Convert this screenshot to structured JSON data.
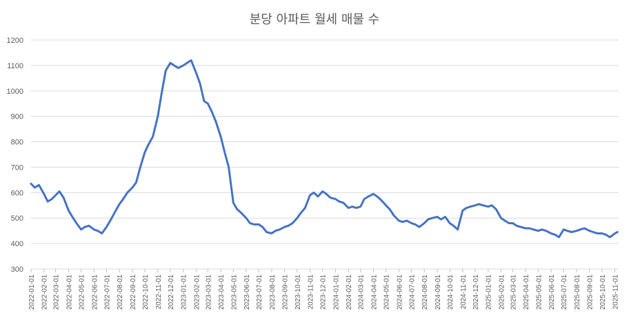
{
  "chart_data": {
    "type": "line",
    "title": "분당 아파트 월세 매물 수",
    "xlabel": "",
    "ylabel": "",
    "ylim": [
      300,
      1200
    ],
    "yticks": [
      300,
      400,
      500,
      600,
      700,
      800,
      900,
      1000,
      1100,
      1200
    ],
    "grid": true,
    "legend": "none",
    "color": "#4472C4",
    "x_tick_labels": [
      "2022-01-01",
      "2022-02-01",
      "2022-03-01",
      "2022-04-01",
      "2022-05-01",
      "2022-06-01",
      "2022-07-01",
      "2022-08-01",
      "2022-09-01",
      "2022-10-01",
      "2022-11-01",
      "2022-12-01",
      "2023-01-01",
      "2023-02-01",
      "2023-03-01",
      "2023-04-01",
      "2023-05-01",
      "2023-06-01",
      "2023-07-01",
      "2023-08-01",
      "2023-09-01",
      "2023-10-01",
      "2023-11-01",
      "2023-12-01",
      "2024-01-01",
      "2024-02-01",
      "2024-03-01",
      "2024-04-01",
      "2024-05-01",
      "2024-06-01",
      "2024-07-01",
      "2024-08-01",
      "2024-09-01",
      "2024-10-01",
      "2024-11-01",
      "2024-12-01",
      "2025-01-01",
      "2025-02-01",
      "2025-03-01",
      "2025-04-01",
      "2025-05-01",
      "2025-06-01",
      "2025-07-01",
      "2025-08-01",
      "2025-09-01",
      "2025-10-01",
      "2025-11-01"
    ],
    "series": [
      {
        "points": [
          [
            "2022-01-01",
            635
          ],
          [
            "2022-01-10",
            620
          ],
          [
            "2022-01-20",
            630
          ],
          [
            "2022-02-01",
            595
          ],
          [
            "2022-02-10",
            565
          ],
          [
            "2022-02-20",
            575
          ],
          [
            "2022-03-01",
            590
          ],
          [
            "2022-03-10",
            605
          ],
          [
            "2022-03-20",
            580
          ],
          [
            "2022-04-01",
            530
          ],
          [
            "2022-04-10",
            505
          ],
          [
            "2022-04-20",
            480
          ],
          [
            "2022-05-01",
            455
          ],
          [
            "2022-05-10",
            465
          ],
          [
            "2022-05-20",
            470
          ],
          [
            "2022-06-01",
            455
          ],
          [
            "2022-06-10",
            450
          ],
          [
            "2022-06-20",
            440
          ],
          [
            "2022-07-01",
            465
          ],
          [
            "2022-07-10",
            490
          ],
          [
            "2022-07-20",
            520
          ],
          [
            "2022-08-01",
            555
          ],
          [
            "2022-08-10",
            575
          ],
          [
            "2022-08-20",
            600
          ],
          [
            "2022-09-01",
            620
          ],
          [
            "2022-09-10",
            640
          ],
          [
            "2022-09-20",
            700
          ],
          [
            "2022-10-01",
            760
          ],
          [
            "2022-10-10",
            790
          ],
          [
            "2022-10-20",
            820
          ],
          [
            "2022-11-01",
            900
          ],
          [
            "2022-11-10",
            990
          ],
          [
            "2022-11-20",
            1080
          ],
          [
            "2022-12-01",
            1110
          ],
          [
            "2022-12-10",
            1100
          ],
          [
            "2022-12-20",
            1090
          ],
          [
            "2023-01-01",
            1100
          ],
          [
            "2023-01-10",
            1110
          ],
          [
            "2023-01-20",
            1120
          ],
          [
            "2023-02-01",
            1070
          ],
          [
            "2023-02-10",
            1030
          ],
          [
            "2023-02-20",
            960
          ],
          [
            "2023-03-01",
            950
          ],
          [
            "2023-03-10",
            920
          ],
          [
            "2023-03-20",
            880
          ],
          [
            "2023-04-01",
            820
          ],
          [
            "2023-04-10",
            760
          ],
          [
            "2023-04-20",
            700
          ],
          [
            "2023-05-01",
            560
          ],
          [
            "2023-05-10",
            535
          ],
          [
            "2023-05-20",
            520
          ],
          [
            "2023-06-01",
            500
          ],
          [
            "2023-06-10",
            480
          ],
          [
            "2023-06-20",
            475
          ],
          [
            "2023-07-01",
            475
          ],
          [
            "2023-07-10",
            465
          ],
          [
            "2023-07-20",
            445
          ],
          [
            "2023-08-01",
            440
          ],
          [
            "2023-08-10",
            450
          ],
          [
            "2023-08-20",
            455
          ],
          [
            "2023-09-01",
            465
          ],
          [
            "2023-09-10",
            470
          ],
          [
            "2023-09-20",
            480
          ],
          [
            "2023-10-01",
            500
          ],
          [
            "2023-10-10",
            520
          ],
          [
            "2023-10-20",
            540
          ],
          [
            "2023-11-01",
            590
          ],
          [
            "2023-11-10",
            600
          ],
          [
            "2023-11-20",
            585
          ],
          [
            "2023-12-01",
            605
          ],
          [
            "2023-12-10",
            595
          ],
          [
            "2023-12-20",
            580
          ],
          [
            "2024-01-01",
            575
          ],
          [
            "2024-01-10",
            565
          ],
          [
            "2024-01-20",
            560
          ],
          [
            "2024-02-01",
            540
          ],
          [
            "2024-02-10",
            545
          ],
          [
            "2024-02-20",
            540
          ],
          [
            "2024-03-01",
            545
          ],
          [
            "2024-03-10",
            575
          ],
          [
            "2024-03-20",
            585
          ],
          [
            "2024-04-01",
            595
          ],
          [
            "2024-04-10",
            585
          ],
          [
            "2024-04-20",
            570
          ],
          [
            "2024-05-01",
            550
          ],
          [
            "2024-05-10",
            535
          ],
          [
            "2024-05-20",
            510
          ],
          [
            "2024-06-01",
            490
          ],
          [
            "2024-06-10",
            485
          ],
          [
            "2024-06-20",
            490
          ],
          [
            "2024-07-01",
            480
          ],
          [
            "2024-07-10",
            475
          ],
          [
            "2024-07-20",
            465
          ],
          [
            "2024-08-01",
            480
          ],
          [
            "2024-08-10",
            495
          ],
          [
            "2024-08-20",
            500
          ],
          [
            "2024-09-01",
            505
          ],
          [
            "2024-09-10",
            495
          ],
          [
            "2024-09-20",
            505
          ],
          [
            "2024-10-01",
            480
          ],
          [
            "2024-10-10",
            470
          ],
          [
            "2024-10-20",
            455
          ],
          [
            "2024-11-01",
            530
          ],
          [
            "2024-11-10",
            540
          ],
          [
            "2024-11-20",
            545
          ],
          [
            "2024-12-01",
            550
          ],
          [
            "2024-12-10",
            555
          ],
          [
            "2024-12-20",
            550
          ],
          [
            "2025-01-01",
            545
          ],
          [
            "2025-01-10",
            550
          ],
          [
            "2025-01-20",
            535
          ],
          [
            "2025-02-01",
            500
          ],
          [
            "2025-02-10",
            490
          ],
          [
            "2025-02-20",
            480
          ],
          [
            "2025-03-01",
            480
          ],
          [
            "2025-03-10",
            470
          ],
          [
            "2025-03-20",
            465
          ],
          [
            "2025-04-01",
            460
          ],
          [
            "2025-04-10",
            460
          ],
          [
            "2025-04-20",
            455
          ],
          [
            "2025-05-01",
            450
          ],
          [
            "2025-05-10",
            455
          ],
          [
            "2025-05-20",
            450
          ],
          [
            "2025-06-01",
            440
          ],
          [
            "2025-06-10",
            435
          ],
          [
            "2025-06-20",
            425
          ],
          [
            "2025-07-01",
            455
          ],
          [
            "2025-07-10",
            450
          ],
          [
            "2025-07-20",
            445
          ],
          [
            "2025-08-01",
            450
          ],
          [
            "2025-08-10",
            455
          ],
          [
            "2025-08-20",
            460
          ],
          [
            "2025-09-01",
            450
          ],
          [
            "2025-09-10",
            445
          ],
          [
            "2025-09-20",
            440
          ],
          [
            "2025-10-01",
            440
          ],
          [
            "2025-10-10",
            435
          ],
          [
            "2025-10-20",
            425
          ],
          [
            "2025-11-01",
            440
          ],
          [
            "2025-11-07",
            445
          ]
        ]
      }
    ]
  }
}
